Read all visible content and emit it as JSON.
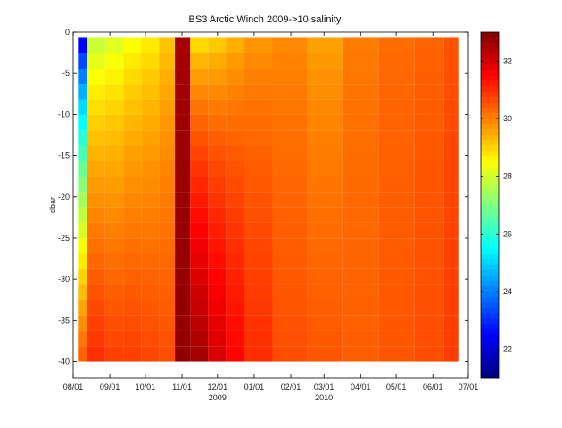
{
  "chart_data": {
    "type": "heatmap",
    "title": "BS3 Arctic Winch 2009->10  salinity",
    "xlabel": "",
    "ylabel": "dbar",
    "x_ticks": [
      "08/01",
      "09/01",
      "10/01",
      "11/01",
      "12/01",
      "01/01",
      "02/01",
      "03/01",
      "04/01",
      "05/01",
      "06/01",
      "07/01"
    ],
    "x_year_labels": [
      {
        "label": "2009",
        "at": "12/01"
      },
      {
        "label": "2010",
        "at": "03/01"
      }
    ],
    "xlim": [
      "2009-08-01",
      "2010-07-01"
    ],
    "ylim": [
      -42,
      0
    ],
    "y_ticks": [
      0,
      -5,
      -10,
      -15,
      -20,
      -25,
      -30,
      -35,
      -40
    ],
    "colorbar": {
      "range": [
        21,
        33
      ],
      "ticks": [
        22,
        24,
        26,
        28,
        30,
        32
      ],
      "colormap": "jet"
    },
    "series": [
      {
        "date": "2009-08-05",
        "surface_salinity": 21.5,
        "deep_salinity": 30.5,
        "bottom_dbar": -40
      },
      {
        "date": "2009-08-20",
        "surface_salinity": 27.5,
        "deep_salinity": 31.0,
        "bottom_dbar": -40
      },
      {
        "date": "2009-09-05",
        "surface_salinity": 27.8,
        "deep_salinity": 30.8,
        "bottom_dbar": -40
      },
      {
        "date": "2009-09-20",
        "surface_salinity": 28.2,
        "deep_salinity": 30.8,
        "bottom_dbar": -40
      },
      {
        "date": "2009-10-05",
        "surface_salinity": 28.5,
        "deep_salinity": 30.7,
        "bottom_dbar": -40
      },
      {
        "date": "2009-10-20",
        "surface_salinity": 29.0,
        "deep_salinity": 30.6,
        "bottom_dbar": -40
      },
      {
        "date": "2009-11-01",
        "surface_salinity": 32.5,
        "deep_salinity": 32.8,
        "bottom_dbar": -40
      },
      {
        "date": "2009-11-15",
        "surface_salinity": 28.5,
        "deep_salinity": 32.6,
        "bottom_dbar": -40
      },
      {
        "date": "2009-12-01",
        "surface_salinity": 28.8,
        "deep_salinity": 32.0,
        "bottom_dbar": -40
      },
      {
        "date": "2009-12-15",
        "surface_salinity": 29.2,
        "deep_salinity": 31.5,
        "bottom_dbar": -40
      },
      {
        "date": "2010-01-01",
        "surface_salinity": 29.6,
        "deep_salinity": 31.0,
        "bottom_dbar": -40
      },
      {
        "date": "2010-02-01",
        "surface_salinity": 29.8,
        "deep_salinity": 30.6,
        "bottom_dbar": -40
      },
      {
        "date": "2010-03-01",
        "surface_salinity": 29.5,
        "deep_salinity": 30.5,
        "bottom_dbar": -40
      },
      {
        "date": "2010-04-01",
        "surface_salinity": 30.0,
        "deep_salinity": 30.4,
        "bottom_dbar": -40
      },
      {
        "date": "2010-05-01",
        "surface_salinity": 30.2,
        "deep_salinity": 30.5,
        "bottom_dbar": -40
      },
      {
        "date": "2010-06-01",
        "surface_salinity": 30.3,
        "deep_salinity": 30.6,
        "bottom_dbar": -40
      },
      {
        "date": "2010-06-20",
        "surface_salinity": 30.5,
        "deep_salinity": 30.8,
        "bottom_dbar": -40
      }
    ]
  }
}
